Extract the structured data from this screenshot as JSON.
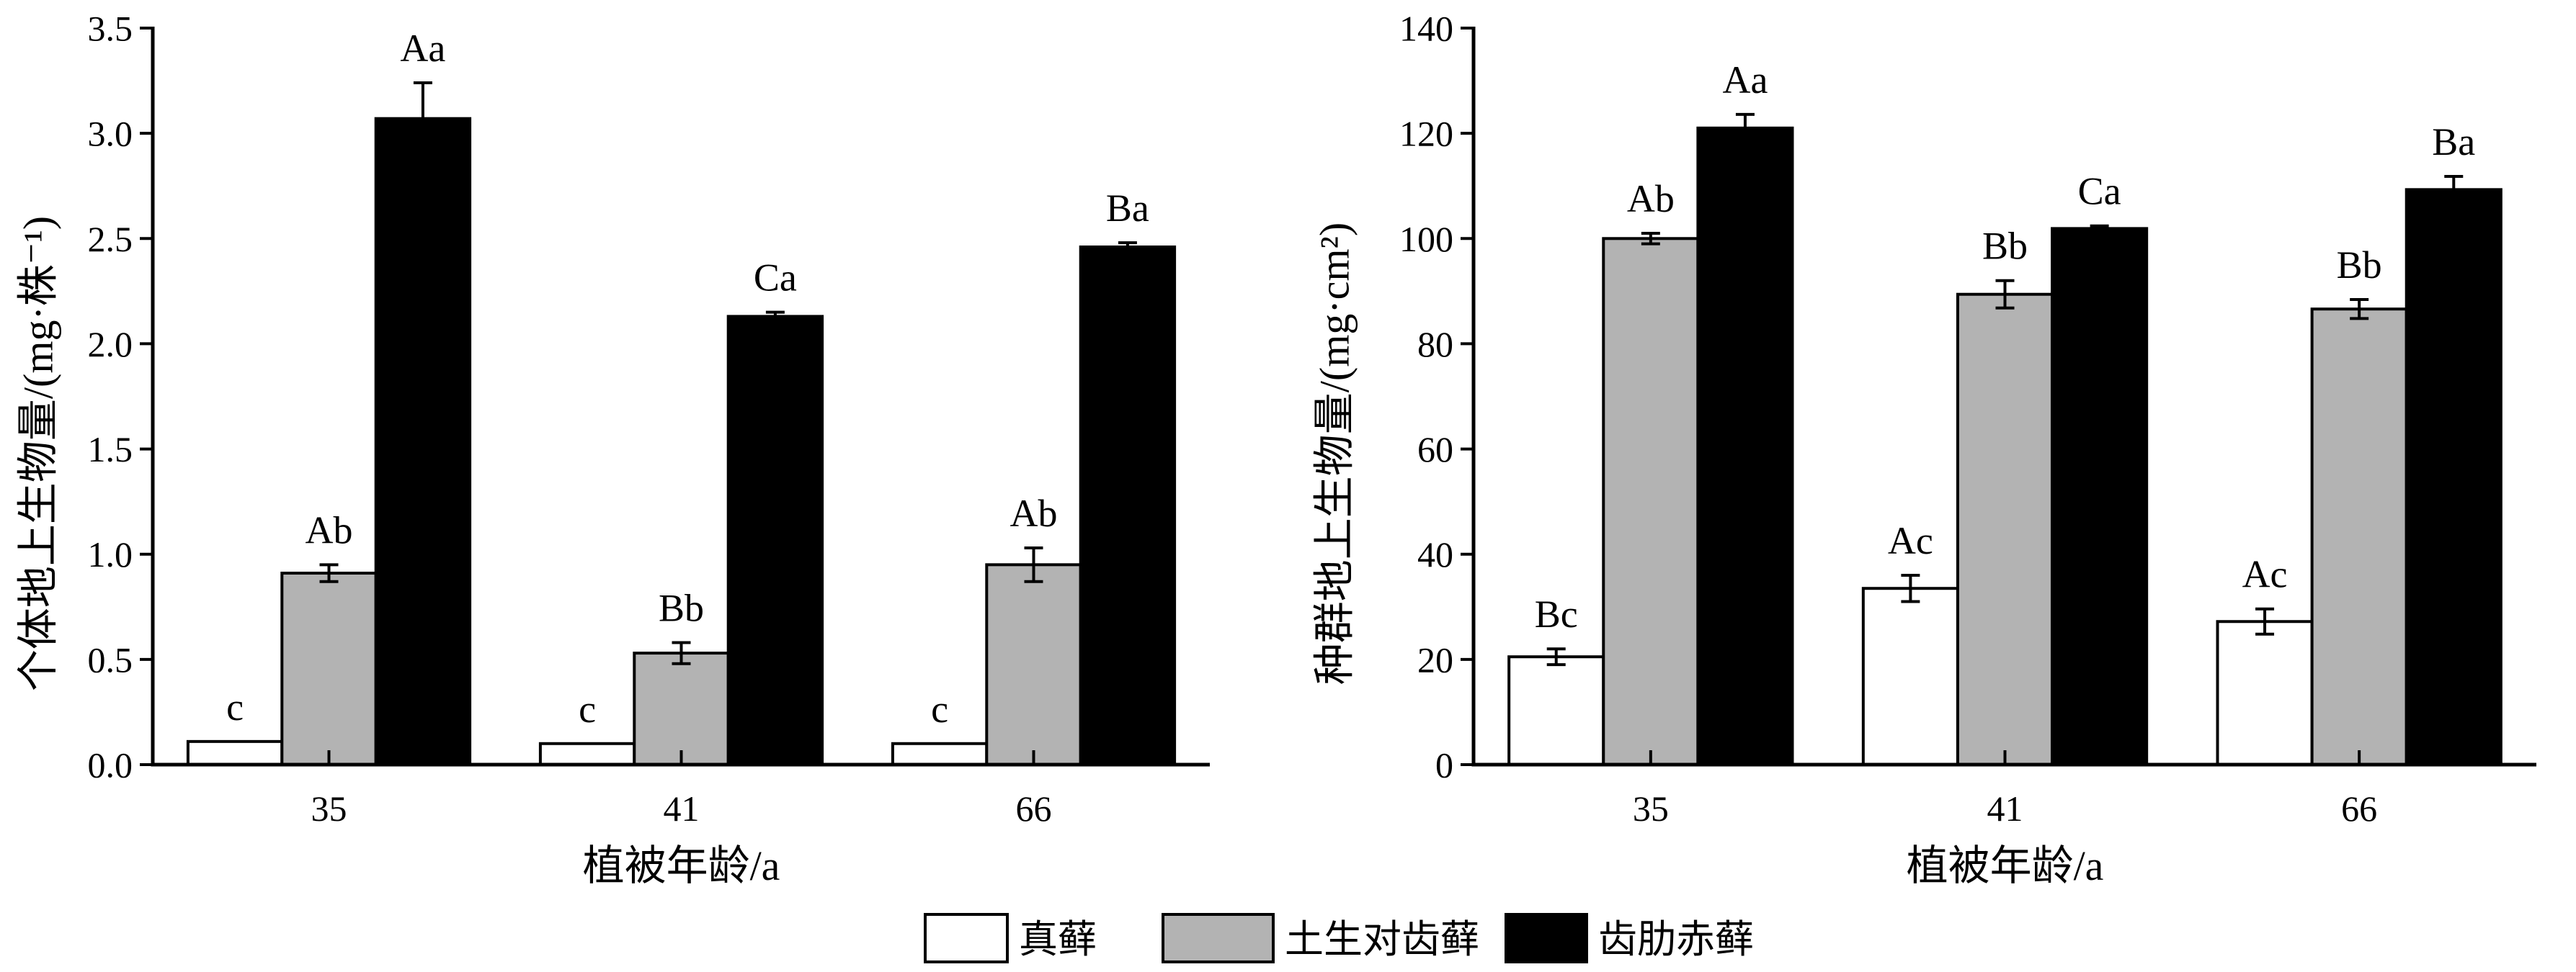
{
  "chart_data": [
    {
      "type": "bar",
      "categories": [
        "35",
        "41",
        "66"
      ],
      "xlabel": "植被年龄/a",
      "ylabel": "个体地上生物量/(mg·株⁻¹)",
      "ylim": [
        0,
        3.5
      ],
      "yticks": [
        "0.0",
        "0.5",
        "1.0",
        "1.5",
        "2.0",
        "2.5",
        "3.0",
        "3.5"
      ],
      "grid": false,
      "legend": "bottom-center",
      "series": [
        {
          "name": "真藓",
          "color": "#ffffff",
          "values": [
            0.11,
            0.1,
            0.1
          ],
          "errors": [
            null,
            null,
            null
          ],
          "labels": [
            "c",
            "c",
            "c"
          ]
        },
        {
          "name": "土生对齿藓",
          "color": "#b3b3b3",
          "values": [
            0.91,
            0.53,
            0.95
          ],
          "errors": [
            0.04,
            0.05,
            0.08
          ],
          "labels": [
            "Ab",
            "Bb",
            "Ab"
          ]
        },
        {
          "name": "齿肋赤藓",
          "color": "#000000",
          "values": [
            3.07,
            2.13,
            2.46
          ],
          "errors": [
            0.17,
            0.02,
            0.02
          ],
          "labels": [
            "Aa",
            "Ca",
            "Ba"
          ]
        }
      ]
    },
    {
      "type": "bar",
      "categories": [
        "35",
        "41",
        "66"
      ],
      "xlabel": "植被年龄/a",
      "ylabel": "种群地上生物量/(mg·cm²)",
      "ylim": [
        0,
        140
      ],
      "yticks": [
        "0",
        "20",
        "40",
        "60",
        "80",
        "100",
        "120",
        "140"
      ],
      "grid": false,
      "legend": "bottom-center",
      "series": [
        {
          "name": "真藓",
          "color": "#ffffff",
          "values": [
            20.5,
            33.5,
            27.2
          ],
          "errors": [
            1.5,
            2.5,
            2.4
          ],
          "labels": [
            "Bc",
            "Ac",
            "Ac"
          ]
        },
        {
          "name": "土生对齿藓",
          "color": "#b3b3b3",
          "values": [
            100.0,
            89.4,
            86.6
          ],
          "errors": [
            1.0,
            2.6,
            1.8
          ],
          "labels": [
            "Ab",
            "Bb",
            "Bb"
          ]
        },
        {
          "name": "齿肋赤藓",
          "color": "#000000",
          "values": [
            121.0,
            101.9,
            109.3
          ],
          "errors": [
            2.6,
            0.5,
            2.5
          ],
          "labels": [
            "Aa",
            "Ca",
            "Ba"
          ]
        }
      ]
    }
  ]
}
